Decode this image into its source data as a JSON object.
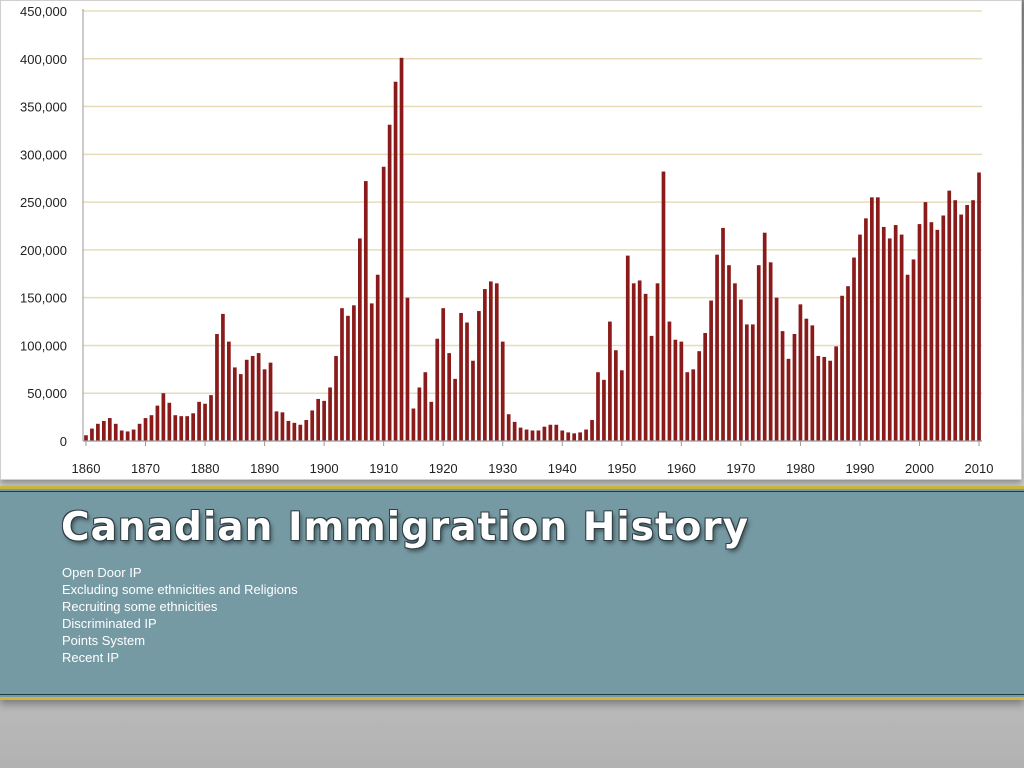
{
  "slide": {
    "title": "Canadian Immigration History",
    "bullets": [
      "Open Door IP",
      "Excluding some ethnicities and Religions",
      "Recruiting some ethnicities",
      "Discriminated IP",
      "Points System",
      "Recent IP"
    ]
  },
  "colors": {
    "bar": "#8b1a1a",
    "gridline": "#e6ddb8",
    "band": "#769aa3",
    "band_border": "#c9b640"
  },
  "chart_data": {
    "type": "bar",
    "title": "",
    "xlabel": "",
    "ylabel": "",
    "ylim": [
      0,
      450000
    ],
    "yticks": [
      0,
      50000,
      100000,
      150000,
      200000,
      250000,
      300000,
      350000,
      400000,
      450000
    ],
    "ytick_labels": [
      "0",
      "50,000",
      "100,000",
      "150,000",
      "200,000",
      "250,000",
      "300,000",
      "350,000",
      "400,000",
      "450,000"
    ],
    "xticks": [
      1860,
      1870,
      1880,
      1890,
      1900,
      1910,
      1920,
      1930,
      1940,
      1950,
      1960,
      1970,
      1980,
      1990,
      2000,
      2010
    ],
    "grid": true,
    "x_start": 1860,
    "x_end": 2010,
    "series": [
      {
        "values": [
          6000,
          13000,
          18000,
          21000,
          24000,
          18000,
          11000,
          10000,
          12000,
          18000,
          24000,
          27000,
          37000,
          50000,
          40000,
          27000,
          26000,
          26000,
          29000,
          41000,
          39000,
          48000,
          112000,
          133000,
          104000,
          77000,
          70000,
          85000,
          89000,
          92000,
          75000,
          82000,
          31000,
          30000,
          21000,
          19000,
          17000,
          22000,
          32000,
          44000,
          42000,
          56000,
          89000,
          139000,
          131000,
          142000,
          212000,
          272000,
          144000,
          174000,
          287000,
          331000,
          376000,
          401000,
          150000,
          34000,
          56000,
          72000,
          41000,
          107000,
          139000,
          92000,
          65000,
          134000,
          124000,
          84000,
          136000,
          159000,
          167000,
          165000,
          104000,
          28000,
          20000,
          14000,
          12000,
          11000,
          11000,
          15000,
          17000,
          17000,
          11000,
          9000,
          8000,
          9000,
          12000,
          22000,
          72000,
          64000,
          125000,
          95000,
          74000,
          194000,
          165000,
          168000,
          154000,
          110000,
          165000,
          282000,
          125000,
          106000,
          104000,
          72000,
          75000,
          94000,
          113000,
          147000,
          195000,
          223000,
          184000,
          165000,
          148000,
          122000,
          122000,
          184000,
          218000,
          187000,
          150000,
          115000,
          86000,
          112000,
          143000,
          128000,
          121000,
          89000,
          88000,
          84000,
          99000,
          152000,
          162000,
          192000,
          216000,
          233000,
          255000,
          255000,
          224000,
          212000,
          226000,
          216000,
          174000,
          190000,
          227000,
          250000,
          229000,
          221000,
          236000,
          262000,
          252000,
          237000,
          247000,
          252000,
          281000
        ]
      }
    ]
  }
}
